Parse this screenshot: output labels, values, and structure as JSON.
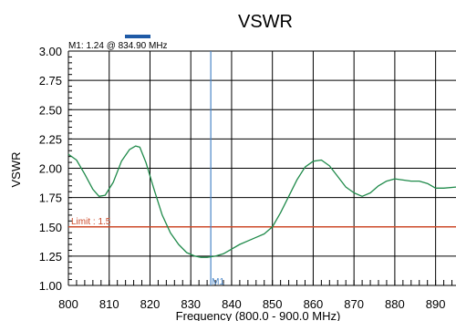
{
  "chart_data": {
    "type": "line",
    "title": "VSWR",
    "xlabel": "Frequency (800.0 - 900.0 MHz)",
    "ylabel": "VSWR",
    "xlim": [
      800,
      895
    ],
    "ylim": [
      1.0,
      3.0
    ],
    "grid": true,
    "x_ticks": [
      "800",
      "810",
      "820",
      "830",
      "840",
      "850",
      "860",
      "870",
      "880",
      "890"
    ],
    "y_ticks": [
      "1.00",
      "1.25",
      "1.50",
      "1.75",
      "2.00",
      "2.25",
      "2.50",
      "2.75",
      "3.00"
    ],
    "series": [
      {
        "color": "#1f8a4a",
        "x": [
          800,
          802,
          804,
          806,
          807.5,
          809,
          811,
          813,
          815,
          816.5,
          817.5,
          819,
          821,
          823,
          825,
          827,
          829,
          831,
          832.5,
          834,
          836,
          838,
          840,
          842,
          844,
          846,
          848,
          850,
          852,
          854,
          856,
          858,
          860,
          862,
          864,
          866,
          868,
          870,
          872,
          874,
          876,
          878,
          880,
          882,
          884,
          886,
          888,
          890,
          892,
          895
        ],
        "y": [
          2.12,
          2.07,
          1.95,
          1.82,
          1.76,
          1.77,
          1.88,
          2.06,
          2.16,
          2.19,
          2.18,
          2.05,
          1.82,
          1.6,
          1.45,
          1.35,
          1.28,
          1.25,
          1.24,
          1.24,
          1.25,
          1.27,
          1.31,
          1.35,
          1.38,
          1.41,
          1.44,
          1.5,
          1.62,
          1.76,
          1.9,
          2.01,
          2.06,
          2.07,
          2.02,
          1.93,
          1.84,
          1.79,
          1.76,
          1.79,
          1.85,
          1.89,
          1.91,
          1.9,
          1.89,
          1.89,
          1.87,
          1.83,
          1.83,
          1.84
        ]
      }
    ],
    "limit": {
      "label": "Limit : 1.5",
      "value": 1.5,
      "color": "#cc4a2a"
    },
    "marker": {
      "label": "M1: 1.24 @ 834.90 MHz",
      "tag": "M1",
      "x": 834.9,
      "y": 1.24,
      "color": "#4a86c8",
      "legend_color": "#1f5aa6"
    }
  }
}
